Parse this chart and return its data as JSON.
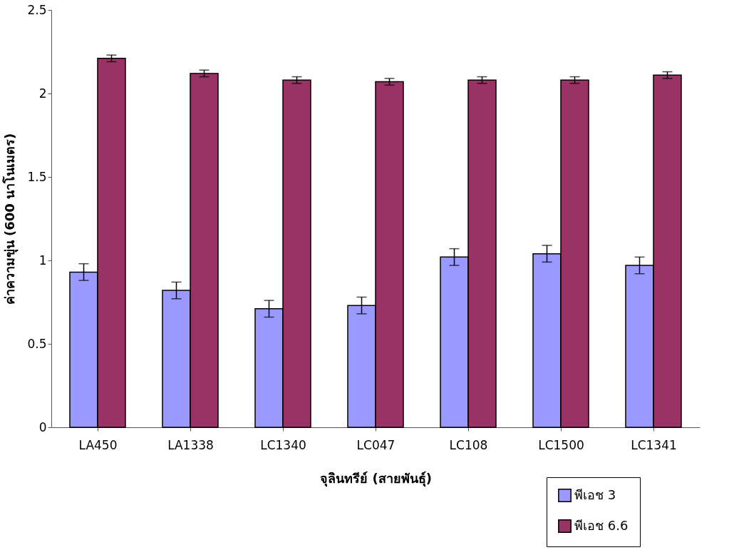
{
  "chart_data": {
    "type": "bar",
    "xlabel": "จุลินทรีย์ (สายพันธุ์)",
    "ylabel": "ค่าความขุ่น (600 นาโนเมตร)",
    "categories": [
      "LA450",
      "LA1338",
      "LC1340",
      "LC047",
      "LC108",
      "LC1500",
      "LC1341"
    ],
    "series": [
      {
        "name": "พีเอช 3",
        "color": "#9999ff",
        "values": [
          0.93,
          0.82,
          0.71,
          0.73,
          1.02,
          1.04,
          0.97
        ],
        "errors": [
          0.05,
          0.05,
          0.05,
          0.05,
          0.05,
          0.05,
          0.05
        ]
      },
      {
        "name": "พีเอช 6.6",
        "color": "#993366",
        "values": [
          2.21,
          2.12,
          2.08,
          2.07,
          2.08,
          2.08,
          2.11
        ],
        "errors": [
          0.02,
          0.02,
          0.02,
          0.02,
          0.02,
          0.02,
          0.02
        ]
      }
    ],
    "ylim": [
      0,
      2.5
    ],
    "yticks": [
      0,
      0.5,
      1,
      1.5,
      2,
      2.5
    ],
    "grid": false,
    "legend": "bottom right"
  }
}
